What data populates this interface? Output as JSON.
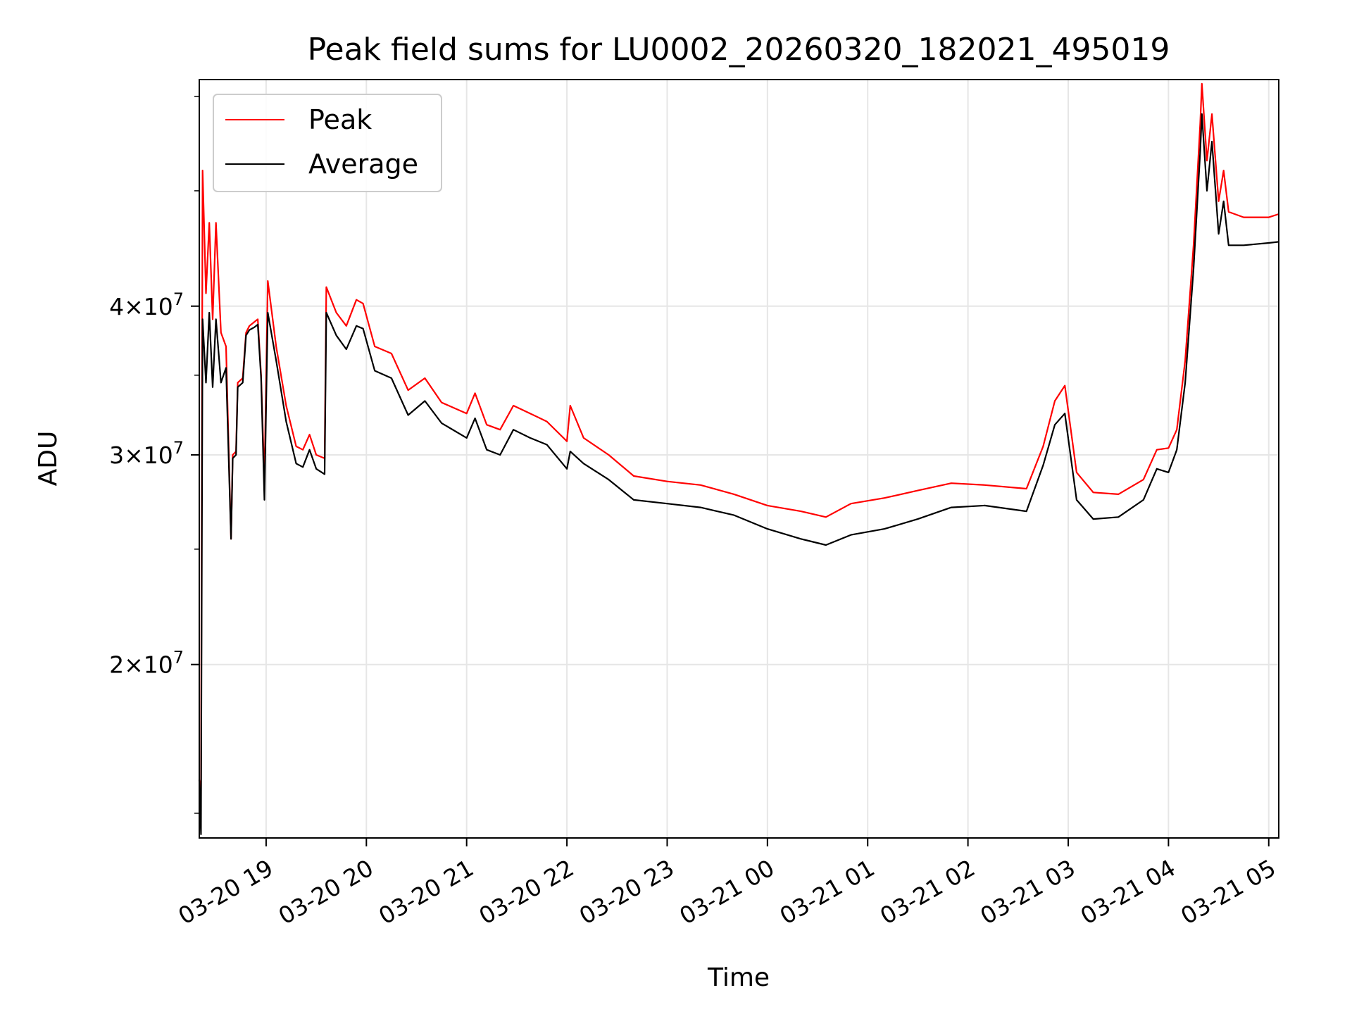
{
  "chart_data": {
    "type": "line",
    "title": "Peak field sums for LU0002_20260320_182021_495019",
    "xlabel": "Time",
    "ylabel": "ADU",
    "yscale": "log",
    "ylim": [
      14300000,
      62000000
    ],
    "xlim": [
      "03-20 18:20",
      "03-21 05:06"
    ],
    "grid": true,
    "legend_position": "upper-left",
    "x_ticks": [
      "03-20 19",
      "03-20 20",
      "03-20 21",
      "03-20 22",
      "03-20 23",
      "03-21 00",
      "03-21 01",
      "03-21 02",
      "03-21 03",
      "03-21 04",
      "03-21 05"
    ],
    "y_ticks": [
      {
        "value": 20000000,
        "mantissa": "2",
        "base": "10",
        "exponent": "7"
      },
      {
        "value": 30000000,
        "mantissa": "3",
        "base": "10",
        "exponent": "7"
      },
      {
        "value": 40000000,
        "mantissa": "4",
        "base": "10",
        "exponent": "7"
      }
    ],
    "series": [
      {
        "name": "Peak",
        "color": "#ff0000",
        "points": [
          [
            "03-20 18:20",
            16000000
          ],
          [
            "03-20 18:21",
            15500000
          ],
          [
            "03-20 18:22",
            52000000
          ],
          [
            "03-20 18:24",
            41000000
          ],
          [
            "03-20 18:26",
            47000000
          ],
          [
            "03-20 18:28",
            39000000
          ],
          [
            "03-20 18:30",
            47000000
          ],
          [
            "03-20 18:33",
            38000000
          ],
          [
            "03-20 18:36",
            37000000
          ],
          [
            "03-20 18:39",
            25500000
          ],
          [
            "03-20 18:40",
            30000000
          ],
          [
            "03-20 18:42",
            30200000
          ],
          [
            "03-20 18:43",
            34500000
          ],
          [
            "03-20 18:46",
            34800000
          ],
          [
            "03-20 18:48",
            38000000
          ],
          [
            "03-20 18:50",
            38500000
          ],
          [
            "03-20 18:53",
            38800000
          ],
          [
            "03-20 18:55",
            39000000
          ],
          [
            "03-20 18:57",
            35000000
          ],
          [
            "03-20 18:59",
            28500000
          ],
          [
            "03-20 19:01",
            42000000
          ],
          [
            "03-20 19:06",
            37000000
          ],
          [
            "03-20 19:12",
            33000000
          ],
          [
            "03-20 19:18",
            30500000
          ],
          [
            "03-20 19:22",
            30300000
          ],
          [
            "03-20 19:26",
            31200000
          ],
          [
            "03-20 19:30",
            30000000
          ],
          [
            "03-20 19:35",
            29800000
          ],
          [
            "03-20 19:36",
            41500000
          ],
          [
            "03-20 19:42",
            39500000
          ],
          [
            "03-20 19:48",
            38500000
          ],
          [
            "03-20 19:54",
            40500000
          ],
          [
            "03-20 19:58",
            40200000
          ],
          [
            "03-20 20:05",
            37000000
          ],
          [
            "03-20 20:15",
            36500000
          ],
          [
            "03-20 20:25",
            34000000
          ],
          [
            "03-20 20:35",
            34800000
          ],
          [
            "03-20 20:45",
            33200000
          ],
          [
            "03-20 21:00",
            32500000
          ],
          [
            "03-20 21:05",
            33800000
          ],
          [
            "03-20 21:12",
            31800000
          ],
          [
            "03-20 21:20",
            31500000
          ],
          [
            "03-20 21:28",
            33000000
          ],
          [
            "03-20 21:38",
            32500000
          ],
          [
            "03-20 21:48",
            32000000
          ],
          [
            "03-20 22:00",
            30800000
          ],
          [
            "03-20 22:02",
            33000000
          ],
          [
            "03-20 22:10",
            31000000
          ],
          [
            "03-20 22:25",
            30000000
          ],
          [
            "03-20 22:40",
            28800000
          ],
          [
            "03-20 23:00",
            28500000
          ],
          [
            "03-20 23:20",
            28300000
          ],
          [
            "03-20 23:40",
            27800000
          ],
          [
            "03-21 00:00",
            27200000
          ],
          [
            "03-21 00:20",
            26900000
          ],
          [
            "03-21 00:35",
            26600000
          ],
          [
            "03-21 00:50",
            27300000
          ],
          [
            "03-21 01:10",
            27600000
          ],
          [
            "03-21 01:30",
            28000000
          ],
          [
            "03-21 01:50",
            28400000
          ],
          [
            "03-21 02:10",
            28300000
          ],
          [
            "03-21 02:35",
            28100000
          ],
          [
            "03-21 02:45",
            30500000
          ],
          [
            "03-21 02:52",
            33300000
          ],
          [
            "03-21 02:58",
            34300000
          ],
          [
            "03-21 03:05",
            29000000
          ],
          [
            "03-21 03:15",
            27900000
          ],
          [
            "03-21 03:30",
            27800000
          ],
          [
            "03-21 03:45",
            28600000
          ],
          [
            "03-21 03:53",
            30300000
          ],
          [
            "03-21 04:00",
            30400000
          ],
          [
            "03-21 04:05",
            31500000
          ],
          [
            "03-21 04:10",
            36000000
          ],
          [
            "03-21 04:15",
            45000000
          ],
          [
            "03-21 04:19",
            57000000
          ],
          [
            "03-21 04:20",
            61500000
          ],
          [
            "03-21 04:23",
            53000000
          ],
          [
            "03-21 04:26",
            58000000
          ],
          [
            "03-21 04:30",
            49000000
          ],
          [
            "03-21 04:33",
            52000000
          ],
          [
            "03-21 04:36",
            48000000
          ],
          [
            "03-21 04:45",
            47500000
          ],
          [
            "03-21 05:00",
            47500000
          ],
          [
            "03-21 05:06",
            47800000
          ]
        ]
      },
      {
        "name": "Average",
        "color": "#000000",
        "points": [
          [
            "03-20 18:20",
            16000000
          ],
          [
            "03-20 18:21",
            14400000
          ],
          [
            "03-20 18:22",
            39000000
          ],
          [
            "03-20 18:24",
            34500000
          ],
          [
            "03-20 18:26",
            39500000
          ],
          [
            "03-20 18:28",
            34200000
          ],
          [
            "03-20 18:30",
            39000000
          ],
          [
            "03-20 18:33",
            34500000
          ],
          [
            "03-20 18:36",
            35500000
          ],
          [
            "03-20 18:39",
            25500000
          ],
          [
            "03-20 18:40",
            29800000
          ],
          [
            "03-20 18:42",
            30000000
          ],
          [
            "03-20 18:43",
            34200000
          ],
          [
            "03-20 18:46",
            34500000
          ],
          [
            "03-20 18:48",
            37800000
          ],
          [
            "03-20 18:50",
            38200000
          ],
          [
            "03-20 18:53",
            38400000
          ],
          [
            "03-20 18:55",
            38600000
          ],
          [
            "03-20 18:57",
            34800000
          ],
          [
            "03-20 18:59",
            27500000
          ],
          [
            "03-20 19:01",
            39500000
          ],
          [
            "03-20 19:06",
            36000000
          ],
          [
            "03-20 19:12",
            32000000
          ],
          [
            "03-20 19:18",
            29500000
          ],
          [
            "03-20 19:22",
            29300000
          ],
          [
            "03-20 19:26",
            30300000
          ],
          [
            "03-20 19:30",
            29200000
          ],
          [
            "03-20 19:35",
            28900000
          ],
          [
            "03-20 19:36",
            39500000
          ],
          [
            "03-20 19:42",
            37800000
          ],
          [
            "03-20 19:48",
            36800000
          ],
          [
            "03-20 19:54",
            38500000
          ],
          [
            "03-20 19:58",
            38300000
          ],
          [
            "03-20 20:05",
            35300000
          ],
          [
            "03-20 20:15",
            34800000
          ],
          [
            "03-20 20:25",
            32400000
          ],
          [
            "03-20 20:35",
            33300000
          ],
          [
            "03-20 20:45",
            31900000
          ],
          [
            "03-20 21:00",
            31000000
          ],
          [
            "03-20 21:05",
            32200000
          ],
          [
            "03-20 21:12",
            30300000
          ],
          [
            "03-20 21:20",
            30000000
          ],
          [
            "03-20 21:28",
            31500000
          ],
          [
            "03-20 21:38",
            31000000
          ],
          [
            "03-20 21:48",
            30600000
          ],
          [
            "03-20 22:00",
            29200000
          ],
          [
            "03-20 22:02",
            30200000
          ],
          [
            "03-20 22:10",
            29500000
          ],
          [
            "03-20 22:25",
            28600000
          ],
          [
            "03-20 22:40",
            27500000
          ],
          [
            "03-20 23:00",
            27300000
          ],
          [
            "03-20 23:20",
            27100000
          ],
          [
            "03-20 23:40",
            26700000
          ],
          [
            "03-21 00:00",
            26000000
          ],
          [
            "03-21 00:20",
            25500000
          ],
          [
            "03-21 00:35",
            25200000
          ],
          [
            "03-21 00:50",
            25700000
          ],
          [
            "03-21 01:10",
            26000000
          ],
          [
            "03-21 01:30",
            26500000
          ],
          [
            "03-21 01:50",
            27100000
          ],
          [
            "03-21 02:10",
            27200000
          ],
          [
            "03-21 02:35",
            26900000
          ],
          [
            "03-21 02:45",
            29400000
          ],
          [
            "03-21 02:52",
            31800000
          ],
          [
            "03-21 02:58",
            32500000
          ],
          [
            "03-21 03:05",
            27500000
          ],
          [
            "03-21 03:15",
            26500000
          ],
          [
            "03-21 03:30",
            26600000
          ],
          [
            "03-21 03:45",
            27500000
          ],
          [
            "03-21 03:53",
            29200000
          ],
          [
            "03-21 04:00",
            29000000
          ],
          [
            "03-21 04:05",
            30300000
          ],
          [
            "03-21 04:10",
            34500000
          ],
          [
            "03-21 04:15",
            43000000
          ],
          [
            "03-21 04:19",
            54000000
          ],
          [
            "03-21 04:20",
            58000000
          ],
          [
            "03-21 04:23",
            50000000
          ],
          [
            "03-21 04:26",
            55000000
          ],
          [
            "03-21 04:30",
            46000000
          ],
          [
            "03-21 04:33",
            49000000
          ],
          [
            "03-21 04:36",
            45000000
          ],
          [
            "03-21 04:45",
            45000000
          ],
          [
            "03-21 05:00",
            45200000
          ],
          [
            "03-21 05:06",
            45300000
          ]
        ]
      }
    ]
  }
}
